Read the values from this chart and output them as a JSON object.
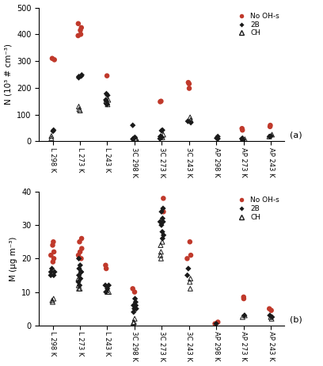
{
  "categories": [
    "L 298 K",
    "L 273 K",
    "L 243 K",
    "3C 298 K",
    "3C 273 K",
    "3C 243 K",
    "AP 298 K",
    "AP 273 K",
    "AP 243 K"
  ],
  "panel_a": {
    "ylabel": "N (10³ # cm⁻³)",
    "ylim": [
      0,
      500
    ],
    "yticks": [
      0,
      100,
      200,
      300,
      400,
      500
    ],
    "no_ohs": [
      [
        310,
        305
      ],
      [
        440,
        425,
        415,
        400,
        395
      ],
      [
        245
      ],
      [],
      [
        150,
        148
      ],
      [
        220,
        215,
        198
      ],
      [],
      [
        48,
        42
      ],
      [
        60,
        55
      ]
    ],
    "b2": [
      [
        42,
        38
      ],
      [
        248,
        244,
        242,
        238
      ],
      [
        178,
        172,
        155,
        150,
        140,
        138
      ],
      [
        60,
        15,
        10,
        8
      ],
      [
        42,
        40,
        18,
        15,
        10
      ],
      [
        75,
        70
      ],
      [
        18,
        12,
        10
      ],
      [
        10,
        8,
        5
      ],
      [
        20,
        18
      ]
    ],
    "ch": [
      [
        20,
        12
      ],
      [
        130,
        120,
        115
      ],
      [
        155,
        150,
        145,
        138
      ],
      [
        10,
        8,
        5
      ],
      [
        25,
        20,
        15
      ],
      [
        90,
        80
      ],
      [],
      [
        12,
        8
      ],
      [
        25,
        18
      ]
    ]
  },
  "panel_b": {
    "ylabel": "M (μg m⁻³)",
    "ylim": [
      0,
      40
    ],
    "yticks": [
      0,
      10,
      20,
      30,
      40
    ],
    "no_ohs": [
      [
        25,
        24,
        22,
        21,
        20,
        19
      ],
      [
        26,
        25,
        23,
        22,
        21,
        20
      ],
      [
        18,
        17
      ],
      [
        11,
        10
      ],
      [
        38,
        34
      ],
      [
        25,
        21,
        20
      ],
      [
        1,
        0.5
      ],
      [
        8,
        8.5
      ],
      [
        5,
        4.5
      ]
    ],
    "b2": [
      [
        17,
        16,
        16,
        15,
        15
      ],
      [
        20,
        18,
        17,
        16,
        16,
        15,
        14,
        13,
        12
      ],
      [
        12,
        12,
        11,
        10
      ],
      [
        8,
        7,
        6,
        6,
        5,
        5,
        4
      ],
      [
        35,
        34,
        32,
        31,
        31,
        30,
        28,
        27,
        26
      ],
      [
        17,
        15
      ],
      [
        0.5
      ],
      [
        3
      ],
      [
        3,
        2.5
      ]
    ],
    "ch": [
      [
        8,
        7.5,
        7
      ],
      [
        14,
        12,
        11,
        11
      ],
      [
        10,
        10
      ],
      [
        2,
        1,
        0.8
      ],
      [
        25,
        24,
        22,
        21,
        20
      ],
      [
        14,
        13,
        11
      ],
      [],
      [
        3,
        2.5
      ],
      [
        2.5,
        2
      ]
    ]
  },
  "colors": {
    "no_ohs": "#c0392b",
    "b2": "#1a1a1a",
    "ch": "#1a1a1a"
  },
  "label_a": "(a)",
  "label_b": "(b)"
}
